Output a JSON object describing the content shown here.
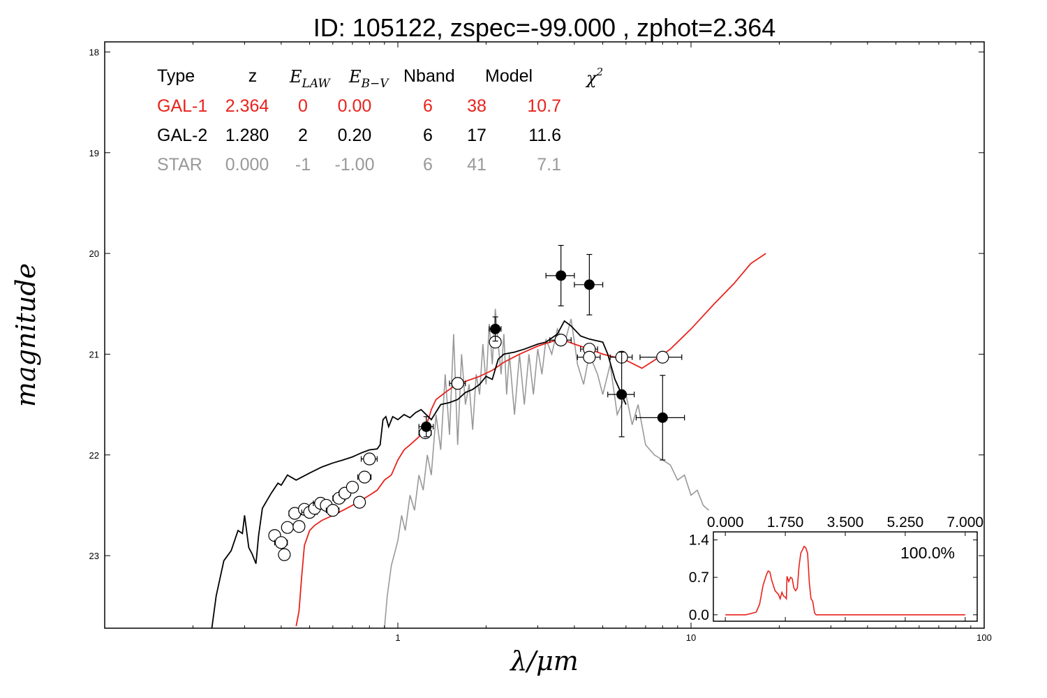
{
  "chart_data": {
    "type": "line",
    "title": "ID:  105122, zspec=-99.000 , zphot=2.364",
    "xlabel": "λ/μm",
    "ylabel": "magnitude",
    "xscale": "log",
    "xlim": [
      0.1,
      100
    ],
    "ylim": [
      23.72,
      17.9
    ],
    "x_ticks": [
      {
        "value": 1,
        "label": "1"
      },
      {
        "value": 10,
        "label": "10"
      },
      {
        "value": 100,
        "label": "100"
      }
    ],
    "y_ticks": [
      {
        "value": 18,
        "label": "18"
      },
      {
        "value": 19,
        "label": "19"
      },
      {
        "value": 20,
        "label": "20"
      },
      {
        "value": 21,
        "label": "21"
      },
      {
        "value": 22,
        "label": "22"
      },
      {
        "value": 23,
        "label": "23"
      }
    ],
    "fit_table": {
      "header": {
        "type": "Type",
        "z": "z",
        "elaw": "E",
        "elaw_sub": "LAW",
        "ebv": "E",
        "ebv_sub": "B−V",
        "nband": "Nband",
        "model": "Model",
        "chi": "χ",
        "chi_sup": "2"
      },
      "rows": [
        {
          "type": "GAL-1",
          "z": "2.364",
          "elaw": "0",
          "ebv": "0.00",
          "nband": "6",
          "model": "38",
          "chi2": "10.7",
          "color": "#e8221c"
        },
        {
          "type": "GAL-2",
          "z": "1.280",
          "elaw": "2",
          "ebv": "0.20",
          "nband": "6",
          "model": "17",
          "chi2": "11.6",
          "color": "#000000"
        },
        {
          "type": "STAR",
          "z": "0.000",
          "elaw": "-1",
          "ebv": "-1.00",
          "nband": "6",
          "model": "41",
          "chi2": "7.1",
          "color": "#999999"
        }
      ]
    },
    "series": [
      {
        "color": "#000000",
        "x": [
          0.232,
          0.24,
          0.255,
          0.27,
          0.285,
          0.295,
          0.3,
          0.31,
          0.318,
          0.328,
          0.335,
          0.345,
          0.37,
          0.39,
          0.4,
          0.42,
          0.45,
          0.5,
          0.55,
          0.6,
          0.65,
          0.7,
          0.75,
          0.8,
          0.85,
          0.87,
          0.89,
          0.91,
          0.93,
          0.96,
          1.0,
          1.05,
          1.1,
          1.15,
          1.2,
          1.3,
          1.4,
          1.5,
          1.6,
          1.7,
          1.8,
          1.9,
          2.0,
          2.1,
          2.2,
          2.3,
          2.5,
          2.7,
          3.0,
          3.2,
          3.5,
          3.7,
          3.9,
          4.2,
          4.5,
          5.0,
          5.2,
          5.5,
          5.7,
          5.9,
          6.0
        ],
        "y": [
          23.72,
          23.4,
          23.05,
          22.95,
          22.75,
          22.78,
          22.6,
          22.92,
          22.98,
          23.08,
          22.8,
          22.53,
          22.38,
          22.28,
          22.3,
          22.2,
          22.25,
          22.18,
          22.12,
          22.08,
          22.05,
          22.02,
          21.98,
          21.95,
          21.94,
          21.9,
          21.65,
          21.62,
          21.72,
          21.62,
          21.65,
          21.6,
          21.63,
          21.58,
          21.55,
          21.65,
          21.5,
          21.48,
          21.45,
          21.38,
          21.35,
          21.3,
          21.22,
          21.25,
          21.05,
          21.0,
          20.98,
          20.95,
          20.9,
          20.88,
          20.8,
          20.67,
          20.72,
          20.82,
          20.85,
          20.88,
          21.0,
          21.25,
          21.35,
          21.45,
          21.5
        ]
      },
      {
        "color": "#e8221c",
        "x": [
          0.45,
          0.46,
          0.47,
          0.48,
          0.5,
          0.52,
          0.55,
          0.6,
          0.65,
          0.7,
          0.75,
          0.8,
          0.85,
          0.9,
          0.95,
          1.0,
          1.05,
          1.1,
          1.15,
          1.2,
          1.25,
          1.28,
          1.3,
          1.35,
          1.45,
          1.55,
          1.7,
          1.9,
          2.1,
          2.3,
          2.6,
          3.0,
          3.3,
          3.6,
          4.0,
          4.5,
          5.0,
          5.5,
          6.0,
          6.8,
          7.5,
          8.5,
          10,
          12,
          14,
          16,
          18
        ],
        "y": [
          23.7,
          23.55,
          23.2,
          22.9,
          22.75,
          22.7,
          22.65,
          22.6,
          22.55,
          22.5,
          22.45,
          22.4,
          22.35,
          22.25,
          22.2,
          22.05,
          21.95,
          21.9,
          21.85,
          21.8,
          21.7,
          21.62,
          21.55,
          21.45,
          21.38,
          21.32,
          21.27,
          21.22,
          21.16,
          21.08,
          21.0,
          20.92,
          20.88,
          20.85,
          20.9,
          20.95,
          21.0,
          21.03,
          21.06,
          21.14,
          21.06,
          20.95,
          20.75,
          20.5,
          20.3,
          20.1,
          20.0
        ]
      },
      {
        "color": "#999999",
        "x": [
          0.9,
          0.92,
          0.95,
          0.98,
          1.0,
          1.03,
          1.06,
          1.1,
          1.14,
          1.18,
          1.22,
          1.26,
          1.3,
          1.35,
          1.4,
          1.45,
          1.5,
          1.55,
          1.6,
          1.65,
          1.7,
          1.75,
          1.8,
          1.85,
          1.9,
          1.95,
          2.0,
          2.05,
          2.1,
          2.15,
          2.2,
          2.25,
          2.3,
          2.35,
          2.4,
          2.5,
          2.6,
          2.7,
          2.8,
          2.9,
          3.0,
          3.1,
          3.2,
          3.35,
          3.5,
          3.7,
          3.9,
          4.1,
          4.3,
          4.5,
          4.8,
          5.0,
          5.3,
          5.6,
          6.0,
          6.3,
          6.6,
          7.0,
          7.5,
          8.0,
          8.5,
          9.0,
          9.5,
          10.0,
          10.5,
          11.0,
          11.5
        ],
        "y": [
          23.72,
          23.4,
          23.1,
          22.95,
          22.85,
          22.6,
          22.75,
          22.4,
          22.55,
          22.2,
          22.35,
          22.0,
          22.2,
          21.6,
          21.95,
          21.2,
          21.8,
          20.8,
          21.9,
          21.0,
          21.5,
          21.3,
          21.75,
          21.2,
          21.4,
          20.9,
          21.3,
          20.7,
          21.1,
          20.55,
          20.9,
          21.2,
          20.8,
          21.4,
          21.0,
          21.6,
          21.0,
          21.5,
          21.0,
          21.4,
          20.95,
          21.2,
          20.85,
          21.0,
          20.75,
          20.9,
          20.65,
          21.1,
          21.3,
          21.0,
          21.2,
          21.4,
          21.1,
          21.6,
          21.4,
          21.7,
          21.5,
          21.9,
          22.0,
          22.05,
          22.1,
          22.25,
          22.2,
          22.4,
          22.35,
          22.5,
          22.55
        ]
      }
    ],
    "observed_points": [
      {
        "x": 1.25,
        "y": 21.72,
        "xerr": 0.07,
        "yerr": 0.1
      },
      {
        "x": 2.15,
        "y": 20.75,
        "xerr": 0.1,
        "yerr": 0.12
      },
      {
        "x": 3.6,
        "y": 20.22,
        "xerr": 0.4,
        "yerr": 0.3
      },
      {
        "x": 4.5,
        "y": 20.31,
        "xerr": 0.5,
        "yerr": 0.3
      },
      {
        "x": 5.8,
        "y": 21.4,
        "xerr": 0.6,
        "yerr": 0.42
      },
      {
        "x": 8.0,
        "y": 21.63,
        "xerr": 1.5,
        "yerr": 0.42
      }
    ],
    "model_points": [
      {
        "x": 0.38,
        "y": 22.8,
        "xerr": 0.01
      },
      {
        "x": 0.4,
        "y": 22.87,
        "xerr": 0.02
      },
      {
        "x": 0.41,
        "y": 22.99,
        "xerr": 0.01
      },
      {
        "x": 0.42,
        "y": 22.72,
        "xerr": 0.01
      },
      {
        "x": 0.445,
        "y": 22.58,
        "xerr": 0.02
      },
      {
        "x": 0.46,
        "y": 22.71,
        "xerr": 0.02
      },
      {
        "x": 0.48,
        "y": 22.54,
        "xerr": 0.02
      },
      {
        "x": 0.5,
        "y": 22.57,
        "xerr": 0.03
      },
      {
        "x": 0.52,
        "y": 22.53,
        "xerr": 0.02
      },
      {
        "x": 0.545,
        "y": 22.48,
        "xerr": 0.03
      },
      {
        "x": 0.57,
        "y": 22.5,
        "xerr": 0.02
      },
      {
        "x": 0.6,
        "y": 22.55,
        "xerr": 0.03
      },
      {
        "x": 0.63,
        "y": 22.43,
        "xerr": 0.03
      },
      {
        "x": 0.66,
        "y": 22.38,
        "xerr": 0.03
      },
      {
        "x": 0.7,
        "y": 22.32,
        "xerr": 0.02
      },
      {
        "x": 0.74,
        "y": 22.47,
        "xerr": 0.02
      },
      {
        "x": 0.77,
        "y": 22.22,
        "xerr": 0.04
      },
      {
        "x": 0.8,
        "y": 22.04,
        "xerr": 0.05
      },
      {
        "x": 1.24,
        "y": 21.78,
        "xerr": 0.06
      },
      {
        "x": 1.6,
        "y": 21.29,
        "xerr": 0.1
      },
      {
        "x": 2.15,
        "y": 20.88,
        "xerr": 0.08
      },
      {
        "x": 3.6,
        "y": 20.86,
        "xerr": 0.3
      },
      {
        "x": 4.5,
        "y": 20.95,
        "xerr": 0.3
      },
      {
        "x": 4.5,
        "y": 21.03,
        "xerr": 0.4
      },
      {
        "x": 5.8,
        "y": 21.03,
        "xerr": 0.5
      },
      {
        "x": 8.0,
        "y": 21.03,
        "xerr": 1.3
      }
    ],
    "inset": {
      "percent_label": "100.0%",
      "xlim": [
        -0.35,
        7.35
      ],
      "ylim": [
        -0.12,
        1.55
      ],
      "x_ticks": [
        {
          "value": 0,
          "label": "0.000"
        },
        {
          "value": 1.75,
          "label": "1.750"
        },
        {
          "value": 3.5,
          "label": "3.500"
        },
        {
          "value": 5.25,
          "label": "5.250"
        },
        {
          "value": 7.0,
          "label": "7.000"
        }
      ],
      "y_ticks": [
        {
          "value": 0,
          "label": "0.0"
        },
        {
          "value": 0.7,
          "label": "0.7"
        },
        {
          "value": 1.4,
          "label": "1.4"
        }
      ],
      "x": [
        0.0,
        0.6,
        0.9,
        1.0,
        1.1,
        1.2,
        1.25,
        1.3,
        1.35,
        1.45,
        1.55,
        1.6,
        1.65,
        1.7,
        1.75,
        1.78,
        1.8,
        1.85,
        1.9,
        1.95,
        2.0,
        2.05,
        2.1,
        2.15,
        2.2,
        2.3,
        2.35,
        2.4,
        2.45,
        2.5,
        2.55,
        2.6,
        2.62,
        2.65,
        2.7,
        2.8,
        3.0,
        5.0,
        7.0
      ],
      "y": [
        0.0,
        0.0,
        0.05,
        0.2,
        0.55,
        0.75,
        0.82,
        0.8,
        0.65,
        0.45,
        0.38,
        0.3,
        0.42,
        0.35,
        0.33,
        0.3,
        0.72,
        0.62,
        0.7,
        0.68,
        0.5,
        0.45,
        0.5,
        0.9,
        1.15,
        1.28,
        1.25,
        1.15,
        0.6,
        0.3,
        0.25,
        0.05,
        0.02,
        0.0,
        0.0,
        0.0,
        0.0,
        0.0,
        0.0
      ],
      "color": "#e8221c"
    }
  }
}
